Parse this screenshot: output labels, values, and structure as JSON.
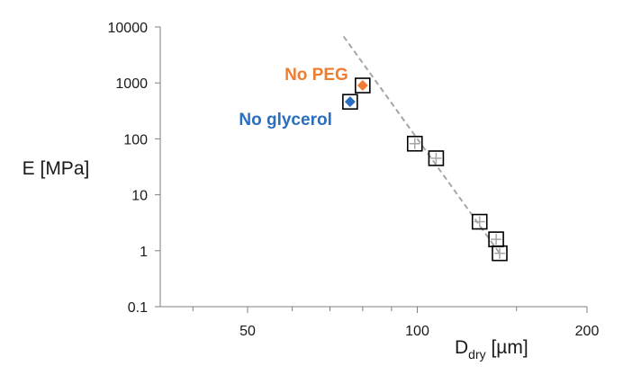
{
  "chart_data": {
    "type": "scatter",
    "title": "",
    "xlabel": "D",
    "xlabel_sub": "dry",
    "xlabel_unit": " [µm]",
    "ylabel": "E [MPa]",
    "x_scale": "log",
    "y_scale": "log",
    "xlim": [
      35,
      200
    ],
    "ylim": [
      0.1,
      10000
    ],
    "x_tick_labels": [
      {
        "value": 50,
        "label": "50"
      },
      {
        "value": 100,
        "label": "100"
      },
      {
        "value": 200,
        "label": "200"
      }
    ],
    "x_minor_ticks": [
      40,
      60,
      70,
      80,
      90,
      150
    ],
    "y_tick_labels": [
      {
        "value": 0.1,
        "label": "0.1"
      },
      {
        "value": 1,
        "label": "1"
      },
      {
        "value": 10,
        "label": "10"
      },
      {
        "value": 100,
        "label": "100"
      },
      {
        "value": 1000,
        "label": "1000"
      },
      {
        "value": 10000,
        "label": "10000"
      }
    ],
    "grid": false,
    "legend": "none",
    "series": [
      {
        "marker": "open-square-with-cross",
        "color": "#000000",
        "x": [
          99,
          108,
          129,
          138,
          140
        ],
        "y": [
          82,
          45,
          3.3,
          1.6,
          0.9
        ]
      },
      {
        "marker": "filled-diamond-in-square",
        "color": "#2a6fbf",
        "x": [
          76
        ],
        "y": [
          460
        ]
      },
      {
        "marker": "filled-diamond-in-square",
        "color": "#ed7d31",
        "x": [
          80
        ],
        "y": [
          900
        ]
      }
    ],
    "fit_line": {
      "style": "dashed",
      "color": "#a6a6a6",
      "x": [
        74,
        140
      ],
      "y": [
        6800,
        0.9
      ]
    },
    "annotations": [
      {
        "text": "No PEG",
        "x": 80,
        "y": 900,
        "color": "#ed7d31",
        "anchor": "left-of-point"
      },
      {
        "text": "No glycerol",
        "x": 76,
        "y": 460,
        "color": "#2a6fbf",
        "anchor": "below-left-of-point"
      }
    ]
  }
}
